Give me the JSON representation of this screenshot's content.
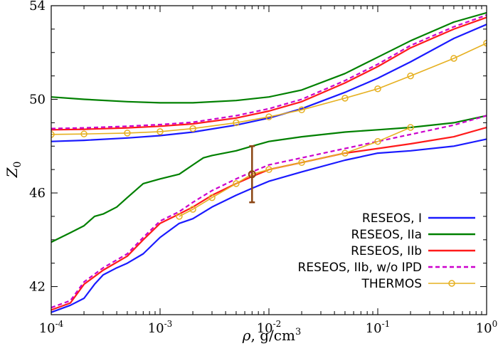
{
  "chart_data": {
    "type": "line",
    "x_scale": "log",
    "xlim": [
      0.0001,
      1
    ],
    "ylim": [
      40.8,
      54
    ],
    "xlabel": {
      "symbol": "ρ",
      "text": ", g/cm",
      "sup": "3"
    },
    "ylabel": {
      "main": "Z",
      "sub": "0"
    },
    "x_ticks": [
      {
        "value": 0.0001,
        "base": "10",
        "exp": "-4"
      },
      {
        "value": 0.001,
        "base": "10",
        "exp": "-3"
      },
      {
        "value": 0.01,
        "base": "10",
        "exp": "-2"
      },
      {
        "value": 0.1,
        "base": "10",
        "exp": "-1"
      },
      {
        "value": 1,
        "base": "10",
        "exp": "0"
      }
    ],
    "y_ticks": [
      {
        "value": 42,
        "label": "42"
      },
      {
        "value": 46,
        "label": "46"
      },
      {
        "value": 50,
        "label": "50"
      },
      {
        "value": 54,
        "label": "54"
      }
    ],
    "legend_position": "bottom-right",
    "series": [
      {
        "name": "RESEOS, I",
        "color": "#1a1aff",
        "dash": "solid",
        "markers": false,
        "branches": [
          {
            "x": [
              0.0001,
              0.0002,
              0.0005,
              0.001,
              0.002,
              0.005,
              0.01,
              0.02,
              0.05,
              0.1,
              0.2,
              0.5,
              1
            ],
            "y": [
              48.2,
              48.25,
              48.35,
              48.45,
              48.6,
              48.9,
              49.2,
              49.6,
              50.3,
              50.9,
              51.6,
              52.6,
              53.2
            ]
          },
          {
            "x": [
              0.0001,
              0.00015,
              0.0002,
              0.00025,
              0.0003,
              0.0004,
              0.0005,
              0.0007,
              0.001,
              0.0015,
              0.002,
              0.003,
              0.005,
              0.007,
              0.01,
              0.02,
              0.05,
              0.1,
              0.2,
              0.5,
              1
            ],
            "y": [
              40.9,
              41.2,
              41.5,
              42.1,
              42.5,
              42.8,
              43.0,
              43.4,
              44.1,
              44.7,
              44.9,
              45.4,
              45.9,
              46.2,
              46.5,
              46.9,
              47.4,
              47.7,
              47.8,
              48.0,
              48.3
            ]
          }
        ]
      },
      {
        "name": "RESEOS, IIa",
        "color": "#008000",
        "dash": "solid",
        "markers": false,
        "branches": [
          {
            "x": [
              0.0001,
              0.0002,
              0.0005,
              0.001,
              0.002,
              0.005,
              0.01,
              0.02,
              0.05,
              0.1,
              0.2,
              0.5,
              1
            ],
            "y": [
              50.1,
              50.0,
              49.9,
              49.85,
              49.85,
              49.95,
              50.1,
              50.4,
              51.1,
              51.8,
              52.5,
              53.3,
              53.7
            ]
          },
          {
            "x": [
              0.0001,
              0.00015,
              0.0002,
              0.00025,
              0.0003,
              0.0004,
              0.0005,
              0.0007,
              0.001,
              0.0015,
              0.002,
              0.0025,
              0.003,
              0.005,
              0.007,
              0.01,
              0.02,
              0.05,
              0.1,
              0.2,
              0.5,
              1
            ],
            "y": [
              43.9,
              44.3,
              44.6,
              45.0,
              45.1,
              45.4,
              45.8,
              46.4,
              46.6,
              46.8,
              47.2,
              47.5,
              47.6,
              47.8,
              48.0,
              48.2,
              48.4,
              48.6,
              48.7,
              48.8,
              49.0,
              49.3
            ]
          }
        ]
      },
      {
        "name": "RESEOS, IIb",
        "color": "#ff1a1a",
        "dash": "solid",
        "markers": false,
        "branches": [
          {
            "x": [
              0.0001,
              0.0002,
              0.0005,
              0.001,
              0.002,
              0.005,
              0.01,
              0.02,
              0.05,
              0.1,
              0.2,
              0.5,
              1
            ],
            "y": [
              48.7,
              48.72,
              48.78,
              48.85,
              48.95,
              49.2,
              49.5,
              49.9,
              50.7,
              51.4,
              52.2,
              53.0,
              53.5
            ]
          },
          {
            "x": [
              0.0001,
              0.00015,
              0.0002,
              0.0003,
              0.0005,
              0.0007,
              0.001,
              0.0015,
              0.002,
              0.003,
              0.005,
              0.007,
              0.01,
              0.02,
              0.05,
              0.1,
              0.2,
              0.5,
              1
            ],
            "y": [
              41.0,
              41.3,
              42.1,
              42.7,
              43.3,
              44.0,
              44.7,
              45.1,
              45.4,
              45.9,
              46.4,
              46.7,
              47.0,
              47.3,
              47.7,
              47.9,
              48.1,
              48.4,
              48.8
            ]
          }
        ]
      },
      {
        "name": "RESEOS, IIb, w/o IPD",
        "color": "#cc00cc",
        "dash": "dashed",
        "markers": false,
        "branches": [
          {
            "x": [
              0.0001,
              0.0002,
              0.0005,
              0.001,
              0.002,
              0.005,
              0.01,
              0.02,
              0.05,
              0.1,
              0.2,
              0.5,
              1
            ],
            "y": [
              48.75,
              48.78,
              48.85,
              48.92,
              49.02,
              49.3,
              49.6,
              50.0,
              50.8,
              51.5,
              52.3,
              53.1,
              53.6
            ]
          },
          {
            "x": [
              0.0001,
              0.00015,
              0.0002,
              0.0003,
              0.0005,
              0.0007,
              0.001,
              0.0015,
              0.002,
              0.003,
              0.005,
              0.007,
              0.01,
              0.02,
              0.05,
              0.1,
              0.2,
              0.5,
              1
            ],
            "y": [
              41.1,
              41.4,
              42.2,
              42.8,
              43.4,
              44.1,
              44.8,
              45.2,
              45.6,
              46.1,
              46.6,
              46.9,
              47.2,
              47.5,
              47.9,
              48.2,
              48.5,
              48.9,
              49.3
            ]
          }
        ]
      },
      {
        "name": "THERMOS",
        "color": "#e6b020",
        "dash": "solid",
        "markers": true,
        "branches": [
          {
            "x": [
              0.0001,
              0.0002,
              0.0005,
              0.001,
              0.002,
              0.005,
              0.01,
              0.02,
              0.05,
              0.1,
              0.2,
              0.5,
              1
            ],
            "y": [
              48.5,
              48.52,
              48.56,
              48.62,
              48.75,
              49.0,
              49.25,
              49.55,
              50.05,
              50.45,
              51.0,
              51.75,
              52.4
            ]
          },
          {
            "x": [
              0.0015,
              0.002,
              0.003,
              0.005,
              0.007,
              0.01,
              0.02,
              0.05,
              0.1,
              0.2
            ],
            "y": [
              45.0,
              45.3,
              45.8,
              46.4,
              46.8,
              47.0,
              47.3,
              47.7,
              48.2,
              48.8
            ]
          }
        ]
      }
    ],
    "error_bar": {
      "x": 0.007,
      "y": 46.8,
      "y_low": 45.6,
      "y_high": 48.0,
      "color": "#8b4513"
    }
  }
}
